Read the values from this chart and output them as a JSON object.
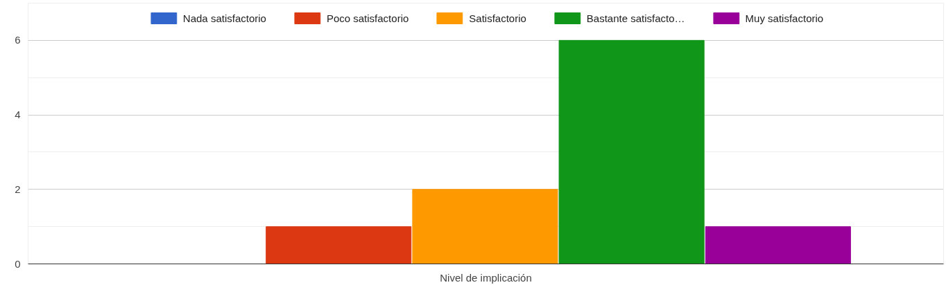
{
  "chart_data": {
    "type": "bar",
    "categories": [
      "Nivel de implicación"
    ],
    "series": [
      {
        "name": "Nada satisfactorio",
        "color": "#3366cc",
        "values": [
          0
        ]
      },
      {
        "name": "Poco satisfactorio",
        "color": "#dc3912",
        "values": [
          1
        ]
      },
      {
        "name": "Satisfactorio",
        "color": "#ff9900",
        "values": [
          2
        ]
      },
      {
        "name": "Bastante satisfacto…",
        "color": "#109618",
        "values": [
          6
        ]
      },
      {
        "name": "Muy satisfactorio",
        "color": "#990099",
        "values": [
          1
        ]
      }
    ],
    "ylim": [
      0,
      7
    ],
    "yticks": [
      0,
      2,
      4,
      6
    ],
    "grid": "y",
    "legend": "top"
  }
}
